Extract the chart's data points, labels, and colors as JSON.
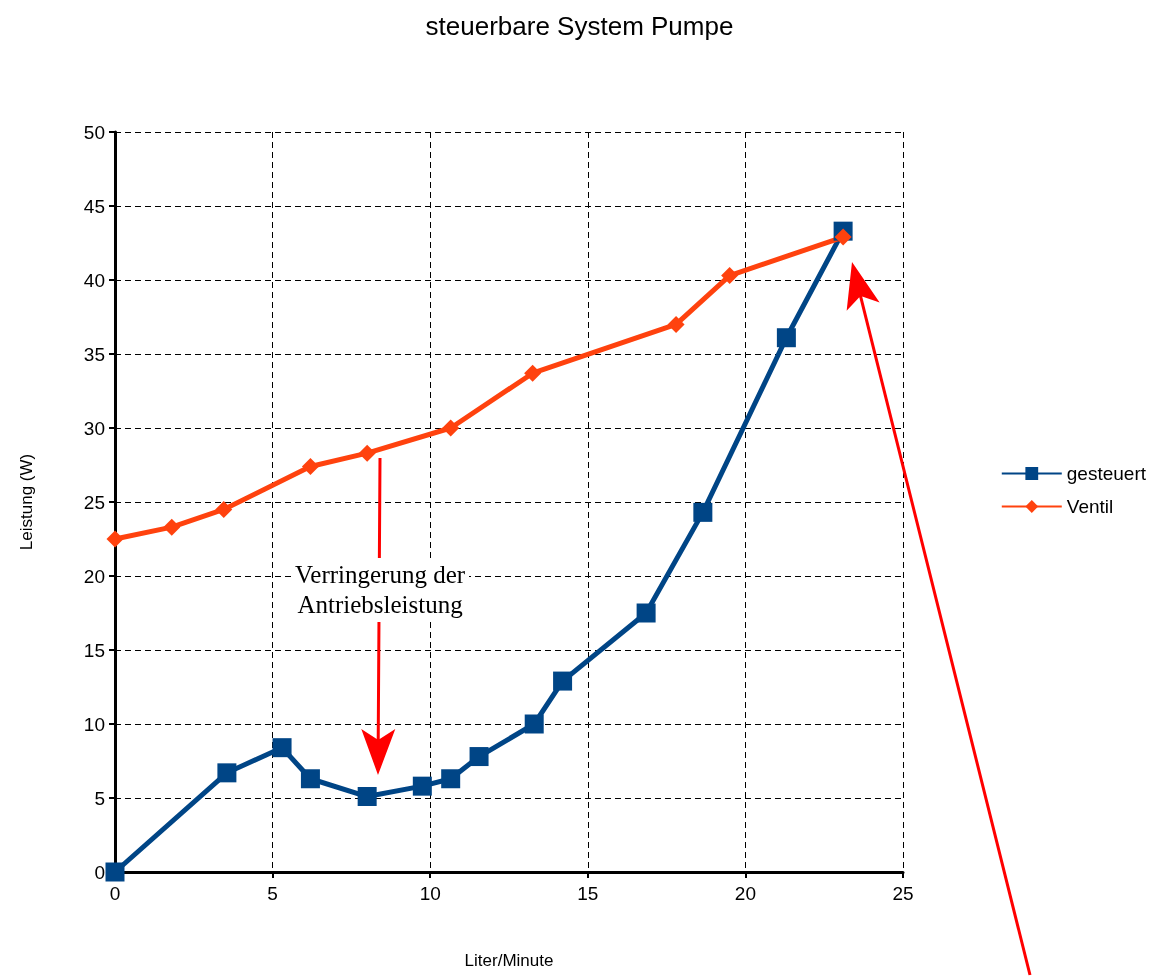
{
  "chart_data": {
    "type": "line",
    "title": "steuerbare System Pumpe",
    "xlabel": "Liter/Minute",
    "ylabel": "Leistung (W)",
    "series": [
      {
        "name": "gesteuert",
        "color": "#004586",
        "marker": "square",
        "x": [
          0,
          3.55,
          5.3,
          6.2,
          8.0,
          9.75,
          10.65,
          11.55,
          13.3,
          14.2,
          16.85,
          18.65,
          21.3,
          23.1
        ],
        "values": [
          0,
          6.7,
          8.4,
          6.3,
          5.1,
          5.8,
          6.3,
          7.8,
          10.0,
          12.9,
          17.5,
          24.3,
          36.1,
          43.3
        ]
      },
      {
        "name": "Ventil",
        "color": "#ff420e",
        "marker": "diamond",
        "x": [
          0,
          1.8,
          3.45,
          6.2,
          8.0,
          10.65,
          13.25,
          17.8,
          19.5,
          23.1
        ],
        "values": [
          22.5,
          23.3,
          24.5,
          27.4,
          28.3,
          30.0,
          33.7,
          37.0,
          40.3,
          42.9
        ]
      }
    ],
    "xlim": [
      0,
      25
    ],
    "xticks": [
      0,
      5,
      10,
      15,
      20,
      25
    ],
    "ylim": [
      0,
      50
    ],
    "yticks": [
      0,
      5,
      10,
      15,
      20,
      25,
      30,
      35,
      40,
      45,
      50
    ],
    "grid": true,
    "legend": "right",
    "line_style": "solid",
    "annotations": [
      "Verringerung der Antriebsleistung"
    ]
  }
}
